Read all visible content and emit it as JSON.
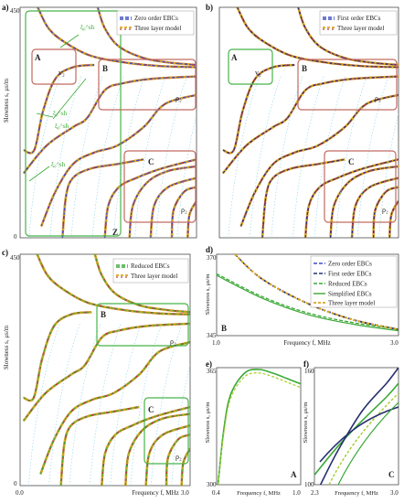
{
  "figure": {
    "colors": {
      "green": "#3aa835",
      "ochre": "#d9a520",
      "brown": "#b7433a",
      "blue": "#3b4fc2",
      "navy": "#27306e",
      "lime": "#a6cc2a",
      "red": "#c44",
      "cyan": "#8cd3ea",
      "frame_green": "#47b34a",
      "frame_brown": "#c26a60",
      "teal": "#4aa092"
    },
    "ylabel_main": "Slowness s, μs/m",
    "xlabel_main": "Frequency f, MHz",
    "panel_a": {
      "label": "a)",
      "legend": [
        "Zero order EBCs",
        "Three layer model"
      ],
      "ytick_top": "450",
      "ytick_bottom": "0",
      "box_labels": {
        "A": "A",
        "B": "B",
        "C": "C",
        "Z": "Z"
      },
      "mode_labels": [
        "v₂",
        "ρ₂",
        "ρ₂"
      ],
      "annot": [
        "ξ₀^sh",
        "ξ₀^sh",
        "ξ₀^sh",
        "ξ₀^sh"
      ]
    },
    "panel_b": {
      "label": "b)",
      "legend": [
        "First order EBCs",
        "Three layer model"
      ],
      "box_labels": {
        "A": "A",
        "B": "B",
        "C": "C"
      },
      "mode_labels": [
        "v₂",
        "ρ₂",
        "ρ₂"
      ]
    },
    "panel_c": {
      "label": "c)",
      "legend": [
        "Reduced EBCs",
        "Three layer model"
      ],
      "ytick_top": "450",
      "ytick_bottom": "0",
      "xticks": [
        "0.0",
        "3.0"
      ],
      "box_labels": {
        "B": "B",
        "C": "C"
      },
      "mode_labels": [
        "ρ₂",
        "ρ₂"
      ]
    },
    "panel_d": {
      "label": "d)",
      "legend": [
        "Zero order EBCs",
        "First order EBCs",
        "Reduced EBCs",
        "Simplified EBCs",
        "Three layer model"
      ],
      "ytick_top": "370",
      "ytick_bottom": "345",
      "xticks": [
        "1.0",
        "3.0"
      ],
      "corner": "B"
    },
    "panel_e": {
      "label": "e)",
      "ytick_top": "365",
      "ytick_bottom": "300",
      "xticks": [
        "0.4",
        "1.0"
      ],
      "corner": "A"
    },
    "panel_f": {
      "label": "f)",
      "ytick_top": "160",
      "ytick_bottom": "100",
      "xticks": [
        "2.3",
        "3.0"
      ],
      "corner": "C"
    }
  },
  "chart_data": [
    {
      "type": "line",
      "panel": "a",
      "legend": [
        "Zero order EBCs",
        "Three layer model"
      ],
      "ylabel": "Slowness s, μs/m",
      "ylim": [
        0,
        450
      ],
      "xlim": [
        0,
        3.0
      ],
      "series": [
        {
          "name": "Zero order EBCs",
          "x": [
            0.1,
            0.3,
            0.6,
            1.0,
            1.5,
            2.0,
            2.5,
            3.0
          ],
          "values": [
            430,
            400,
            383,
            372,
            366,
            363,
            361,
            360
          ]
        },
        {
          "name": "Three layer model",
          "x": [
            0.1,
            0.3,
            0.6,
            1.0,
            1.5,
            2.0,
            2.5,
            3.0
          ],
          "values": [
            430,
            400,
            383,
            372,
            366,
            363,
            361,
            360
          ]
        }
      ]
    },
    {
      "type": "line",
      "panel": "b",
      "legend": [
        "First order EBCs",
        "Three layer model"
      ],
      "ylim": [
        0,
        450
      ],
      "xlim": [
        0,
        3.0
      ],
      "series": [
        {
          "name": "First order EBCs",
          "x": [
            0.1,
            0.3,
            0.6,
            1.0,
            1.5,
            2.0,
            2.5,
            3.0
          ],
          "values": [
            430,
            400,
            383,
            372,
            366,
            363,
            361,
            360
          ]
        },
        {
          "name": "Three layer model",
          "x": [
            0.1,
            0.3,
            0.6,
            1.0,
            1.5,
            2.0,
            2.5,
            3.0
          ],
          "values": [
            430,
            400,
            383,
            372,
            366,
            363,
            361,
            360
          ]
        }
      ]
    },
    {
      "type": "line",
      "panel": "c",
      "legend": [
        "Reduced EBCs",
        "Three layer model"
      ],
      "xlabel": "Frequency f, MHz",
      "ylabel": "Slowness s, μs/m",
      "ylim": [
        0,
        450
      ],
      "xlim": [
        0,
        3.0
      ],
      "series": [
        {
          "name": "Reduced EBCs",
          "x": [
            0.1,
            0.3,
            0.6,
            1.0,
            1.5,
            2.0,
            2.5,
            3.0
          ],
          "values": [
            430,
            400,
            383,
            372,
            366,
            363,
            361,
            360
          ]
        },
        {
          "name": "Three layer model",
          "x": [
            0.1,
            0.3,
            0.6,
            1.0,
            1.5,
            2.0,
            2.5,
            3.0
          ],
          "values": [
            430,
            400,
            383,
            372,
            366,
            363,
            361,
            360
          ]
        }
      ]
    },
    {
      "type": "line",
      "panel": "d",
      "xlabel": "Frequency f, MHz",
      "ylabel": "Slowness s, μs/m",
      "ylim": [
        345,
        370
      ],
      "xlim": [
        1.0,
        3.0
      ],
      "series": [
        {
          "name": "Zero order EBCs",
          "x": [
            1.2,
            1.5,
            2.0,
            2.5,
            3.0
          ],
          "values": [
            370,
            362.5,
            355,
            350,
            347
          ]
        },
        {
          "name": "First order EBCs",
          "x": [
            1.2,
            1.5,
            2.0,
            2.5,
            3.0
          ],
          "values": [
            370,
            362.3,
            354.8,
            349.8,
            346.8
          ]
        },
        {
          "name": "Reduced EBCs",
          "x": [
            1.0,
            1.5,
            2.0,
            2.5,
            3.0
          ],
          "values": [
            364,
            357,
            352,
            349,
            347
          ]
        },
        {
          "name": "Simplified EBCs",
          "x": [
            1.0,
            1.5,
            2.0,
            2.5,
            3.0
          ],
          "values": [
            363.5,
            356.5,
            351.5,
            348.5,
            346.5
          ]
        },
        {
          "name": "Three layer model",
          "x": [
            1.2,
            1.5,
            2.0,
            2.5,
            3.0
          ],
          "values": [
            370,
            362.4,
            354.9,
            349.9,
            346.9
          ]
        }
      ]
    },
    {
      "type": "line",
      "panel": "e",
      "xlabel": "Frequency f, MHz",
      "ylabel": "Slowness s, μs/m",
      "ylim": [
        300,
        365
      ],
      "xlim": [
        0.4,
        1.0
      ],
      "series": [
        {
          "name": "Three layer model",
          "x": [
            0.41,
            0.45,
            0.5,
            0.6,
            0.7,
            0.8,
            0.9,
            1.0
          ],
          "values": [
            300,
            330,
            350,
            362,
            364,
            362,
            359,
            356
          ]
        },
        {
          "name": "Reduced EBCs",
          "x": [
            0.41,
            0.45,
            0.5,
            0.6,
            0.7,
            0.8,
            0.9,
            1.0
          ],
          "values": [
            300,
            328,
            348,
            360,
            362,
            360,
            357,
            354
          ]
        }
      ]
    },
    {
      "type": "line",
      "panel": "f",
      "xlabel": "Frequency f, MHz",
      "ylim": [
        100,
        160
      ],
      "xlim": [
        2.3,
        3.0
      ],
      "series": [
        {
          "name": "Three layer model",
          "x": [
            2.3,
            2.5,
            2.7,
            2.9,
            3.0
          ],
          "values": [
            105,
            120,
            133,
            145,
            152
          ]
        },
        {
          "name": "Zero order EBCs",
          "x": [
            2.35,
            2.5,
            2.7,
            2.9,
            3.0
          ],
          "values": [
            100,
            118,
            138,
            152,
            160
          ]
        }
      ]
    }
  ]
}
